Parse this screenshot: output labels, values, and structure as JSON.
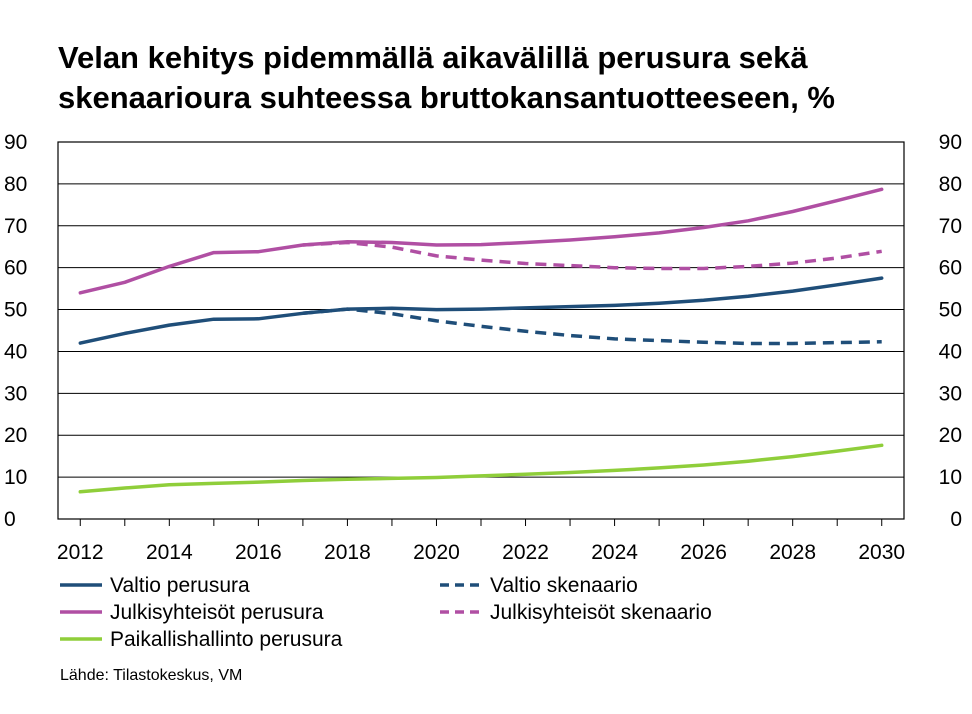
{
  "title_line1": "Velan kehitys pidemmällä aikavälillä perusura sekä",
  "title_line2": "skenaarioura suhteessa bruttokansantuotteeseen, %",
  "source": "Lähde: Tilastokeskus, VM",
  "chart_data": {
    "type": "line",
    "x": [
      2012,
      2013,
      2014,
      2015,
      2016,
      2017,
      2018,
      2019,
      2020,
      2021,
      2022,
      2023,
      2024,
      2025,
      2026,
      2027,
      2028,
      2029,
      2030
    ],
    "x_ticks": [
      "2012",
      "2014",
      "2016",
      "2018",
      "2020",
      "2022",
      "2024",
      "2026",
      "2028",
      "2030"
    ],
    "y_ticks": [
      "0",
      "10",
      "20",
      "30",
      "40",
      "50",
      "60",
      "70",
      "80",
      "90"
    ],
    "ylim": [
      0,
      90
    ],
    "xlim": [
      2011.5,
      2030.5
    ],
    "grid": true,
    "legend_position": "bottom",
    "series": [
      {
        "name": "Valtio perusura",
        "color": "#1f4e79",
        "dash": false,
        "values": [
          42.0,
          44.3,
          46.3,
          47.7,
          47.8,
          49.1,
          50.1,
          50.3,
          50.0,
          50.1,
          50.4,
          50.7,
          51.0,
          51.5,
          52.2,
          53.2,
          54.4,
          55.9,
          57.5
        ]
      },
      {
        "name": "Julkisyhteisöt perusura",
        "color": "#b04fa3",
        "dash": false,
        "values": [
          54.0,
          56.5,
          60.3,
          63.6,
          63.8,
          65.4,
          66.2,
          66.0,
          65.4,
          65.5,
          66.0,
          66.6,
          67.4,
          68.3,
          69.6,
          71.2,
          73.4,
          76.0,
          78.7
        ]
      },
      {
        "name": "Paikallishallinto perusura",
        "color": "#8fce3a",
        "dash": false,
        "values": [
          6.5,
          7.4,
          8.2,
          8.5,
          8.8,
          9.2,
          9.5,
          9.7,
          9.9,
          10.3,
          10.7,
          11.1,
          11.6,
          12.2,
          12.9,
          13.8,
          14.9,
          16.2,
          17.6
        ]
      },
      {
        "name": "Valtio skenaario",
        "color": "#1f4e79",
        "dash": true,
        "values": [
          null,
          null,
          null,
          null,
          null,
          49.1,
          50.1,
          49.0,
          47.3,
          46.0,
          44.8,
          43.8,
          43.0,
          42.6,
          42.2,
          41.9,
          41.9,
          42.1,
          42.3
        ]
      },
      {
        "name": "Julkisyhteisöt skenaario",
        "color": "#b04fa3",
        "dash": true,
        "values": [
          null,
          null,
          null,
          null,
          null,
          65.4,
          66.0,
          64.9,
          62.8,
          61.8,
          61.0,
          60.5,
          60.0,
          59.8,
          59.8,
          60.3,
          61.1,
          62.3,
          63.9
        ]
      }
    ]
  },
  "legend": {
    "items": [
      {
        "label": "Valtio perusura",
        "color": "#1f4e79",
        "dash": false
      },
      {
        "label": "Valtio skenaario",
        "color": "#1f4e79",
        "dash": true
      },
      {
        "label": "Julkisyhteisöt perusura",
        "color": "#b04fa3",
        "dash": false
      },
      {
        "label": "Julkisyhteisöt skenaario",
        "color": "#b04fa3",
        "dash": true
      },
      {
        "label": "Paikallishallinto perusura",
        "color": "#8fce3a",
        "dash": false
      }
    ]
  }
}
